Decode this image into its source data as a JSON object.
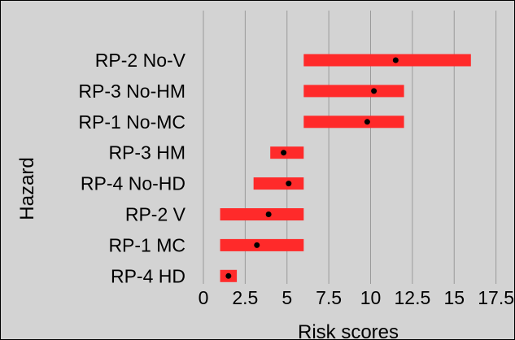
{
  "chart_data": {
    "type": "range-bar",
    "categories": [
      "RP-2 No-V",
      "RP-3 No-HM",
      "RP-1 No-MC",
      "RP-3 HM",
      "RP-4 No-HD",
      "RP-2 V",
      "RP-1 MC",
      "RP-4 HD"
    ],
    "series": [
      {
        "ranges": [
          [
            6,
            16
          ],
          [
            6,
            12
          ],
          [
            6,
            12
          ],
          [
            4,
            6
          ],
          [
            3,
            6
          ],
          [
            1,
            6
          ],
          [
            1,
            6
          ],
          [
            1,
            2
          ]
        ],
        "points": [
          11.5,
          10.2,
          9.8,
          4.8,
          5.1,
          3.9,
          3.2,
          1.5
        ]
      }
    ],
    "xlabel": "Risk scores",
    "ylabel": "Hazard",
    "xlim": [
      0,
      18
    ],
    "xticks": [
      0,
      2.5,
      5,
      7.5,
      10,
      12.5,
      15,
      17.5
    ],
    "xtick_labels": [
      "0",
      "2.5",
      "5",
      "7.5",
      "10",
      "12.5",
      "15",
      "17.5"
    ],
    "grid": true,
    "colors": {
      "bar": "#ff2a2a",
      "point": "#000000",
      "background": "#d3d3d3",
      "grid": "#9a9a9a"
    }
  }
}
